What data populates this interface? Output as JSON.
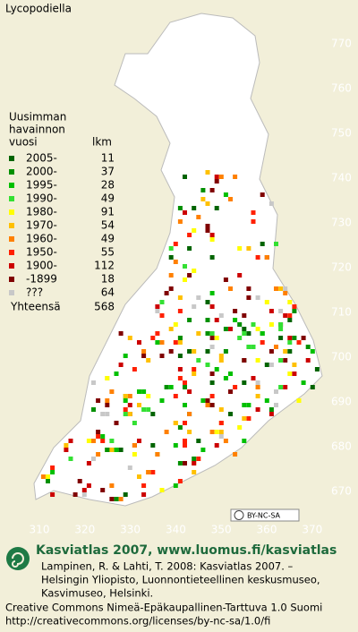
{
  "title": "Lycopodiella",
  "legend": {
    "heading": [
      "Uusimman",
      "havainnon",
      "vuosi"
    ],
    "count_heading": "lkm",
    "items": [
      {
        "label": "2005-",
        "count": 11,
        "color": "#006400"
      },
      {
        "label": "2000-",
        "count": 37,
        "color": "#009000"
      },
      {
        "label": "1995-",
        "count": 28,
        "color": "#00c000"
      },
      {
        "label": "1990-",
        "count": 49,
        "color": "#33e033"
      },
      {
        "label": "1980-",
        "count": 91,
        "color": "#ffff00"
      },
      {
        "label": "1970-",
        "count": 54,
        "color": "#ffc000"
      },
      {
        "label": "1960-",
        "count": 49,
        "color": "#ff8000"
      },
      {
        "label": "1950-",
        "count": 55,
        "color": "#ff2000"
      },
      {
        "label": "1900-",
        "count": 112,
        "color": "#cc0000"
      },
      {
        "label": "-1899",
        "count": 18,
        "color": "#800000"
      },
      {
        "label": "???",
        "count": 64,
        "color": "#c8c8c8"
      }
    ],
    "total_label": "Yhteensä",
    "total": 568
  },
  "grid": {
    "y_labels": [
      770,
      760,
      750,
      740,
      730,
      720,
      710,
      700,
      690,
      680,
      670
    ],
    "x_labels": [
      310,
      320,
      330,
      340,
      350,
      360,
      370
    ]
  },
  "badge": "BY-NC-SA",
  "footer": {
    "title": "Kasviatlas 2007, www.luomus.fi/kasviatlas",
    "citation": [
      "Lampinen, R. & Lahti, T. 2008: Kasviatlas 2007. –",
      "Helsingin Yliopisto, Luonnontieteellinen keskusmuseo,",
      "Kasvimuseo, Helsinki."
    ],
    "license": [
      "Creative Commons Nimeä-Epäkaupallinen-Tarttuva 1.0 Suomi",
      "http://creativecommons.org/licenses/by-nc-sa/1.0/fi"
    ]
  }
}
